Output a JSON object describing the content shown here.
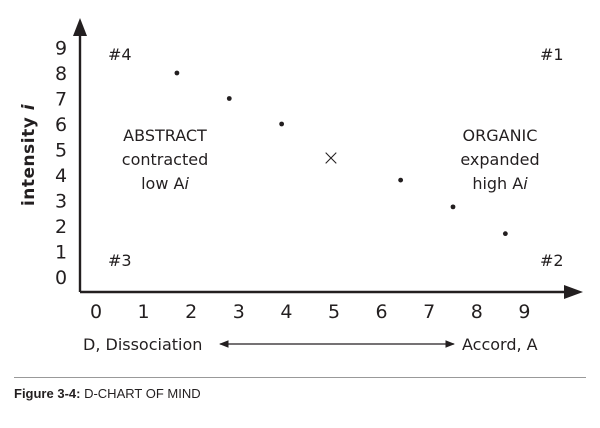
{
  "chart_data": {
    "type": "scatter",
    "title": "",
    "ylabel_main": "intensity ",
    "ylabel_italic": "i",
    "x_ticks": [
      "0",
      "1",
      "2",
      "3",
      "4",
      "5",
      "6",
      "7",
      "8",
      "9"
    ],
    "y_ticks": [
      "0",
      "1",
      "2",
      "3",
      "4",
      "5",
      "6",
      "7",
      "8",
      "9"
    ],
    "xlim": [
      0,
      10
    ],
    "ylim": [
      0,
      9.8
    ],
    "grid": false,
    "points": [
      {
        "x": 1.7,
        "y": 8.0
      },
      {
        "x": 2.8,
        "y": 7.0
      },
      {
        "x": 3.9,
        "y": 6.0
      },
      {
        "x": 6.4,
        "y": 3.8
      },
      {
        "x": 7.5,
        "y": 2.75
      },
      {
        "x": 8.6,
        "y": 1.7
      }
    ],
    "center_marker": {
      "x": 5,
      "y": 4.7,
      "symbol": "×"
    },
    "quadrant_labels": [
      {
        "id": "q4",
        "text": "#4"
      },
      {
        "id": "q1",
        "text": "#1"
      },
      {
        "id": "q3",
        "text": "#3"
      },
      {
        "id": "q2",
        "text": "#2"
      }
    ],
    "left_block": {
      "line1": "ABSTRACT",
      "line2": "contracted",
      "line3_main": "low A",
      "line3_italic": "i"
    },
    "right_block": {
      "line1": "ORGANIC",
      "line2": "expanded",
      "line3_main": "high A",
      "line3_italic": "i"
    },
    "axis_legend": {
      "left": "D, Dissociation",
      "right": "Accord, A"
    }
  },
  "caption": {
    "label": "Figure 3-4:",
    "text": " D-CHART OF MIND"
  }
}
